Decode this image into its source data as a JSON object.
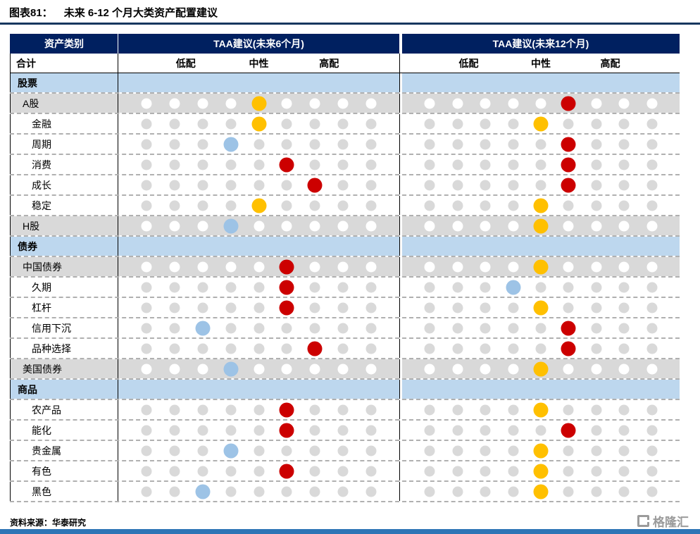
{
  "page": {
    "title_tag": "图表81：",
    "title_text": "未来 6-12 个月大类资产配置建议",
    "source": "资料来源：华泰研究",
    "logo_text": "格隆汇"
  },
  "colors": {
    "header_bg": "#002060",
    "header_text": "#FFFFFF",
    "section_bg": "#BDD7EE",
    "major_row_bg": "#D9D9D9",
    "inactive_dot_on_white_row": "#D9D9D9",
    "inactive_dot_on_gray_row": "#FFFFFF",
    "red": "#CC0000",
    "yellow": "#FFC000",
    "blue": "#9DC3E6",
    "footer_bar": "#2E75B6",
    "title_rule": "#17375E"
  },
  "chart_data": {
    "type": "table",
    "title": "未来 6-12 个月大类资产配置建议",
    "figure_number": "图表81：",
    "columns": [
      "资产类别",
      "TAA建议(未来6个月)",
      "TAA建议(未来12个月)"
    ],
    "subheader_label": "合计",
    "scale_labels": [
      "低配",
      "中性",
      "高配"
    ],
    "positions_per_row": 9,
    "rows": [
      {
        "label": "股票",
        "type": "section"
      },
      {
        "label": "A股",
        "type": "major",
        "m6": {
          "pos": 5,
          "color": "yellow"
        },
        "m12": {
          "pos": 6,
          "color": "red"
        }
      },
      {
        "label": "金融",
        "type": "sub",
        "m6": {
          "pos": 5,
          "color": "yellow"
        },
        "m12": {
          "pos": 5,
          "color": "yellow"
        }
      },
      {
        "label": "周期",
        "type": "sub",
        "m6": {
          "pos": 4,
          "color": "blue"
        },
        "m12": {
          "pos": 6,
          "color": "red"
        }
      },
      {
        "label": "消费",
        "type": "sub",
        "m6": {
          "pos": 6,
          "color": "red"
        },
        "m12": {
          "pos": 6,
          "color": "red"
        }
      },
      {
        "label": "成长",
        "type": "sub",
        "m6": {
          "pos": 7,
          "color": "red"
        },
        "m12": {
          "pos": 6,
          "color": "red"
        }
      },
      {
        "label": "稳定",
        "type": "sub",
        "m6": {
          "pos": 5,
          "color": "yellow"
        },
        "m12": {
          "pos": 5,
          "color": "yellow"
        }
      },
      {
        "label": "H股",
        "type": "major",
        "m6": {
          "pos": 4,
          "color": "blue"
        },
        "m12": {
          "pos": 5,
          "color": "yellow"
        }
      },
      {
        "label": "债券",
        "type": "section"
      },
      {
        "label": "中国债券",
        "type": "major",
        "m6": {
          "pos": 6,
          "color": "red"
        },
        "m12": {
          "pos": 5,
          "color": "yellow"
        }
      },
      {
        "label": "久期",
        "type": "sub",
        "m6": {
          "pos": 6,
          "color": "red"
        },
        "m12": {
          "pos": 4,
          "color": "blue"
        }
      },
      {
        "label": "杠杆",
        "type": "sub",
        "m6": {
          "pos": 6,
          "color": "red"
        },
        "m12": {
          "pos": 5,
          "color": "yellow"
        }
      },
      {
        "label": "信用下沉",
        "type": "sub",
        "m6": {
          "pos": 3,
          "color": "blue"
        },
        "m12": {
          "pos": 6,
          "color": "red"
        }
      },
      {
        "label": "品种选择",
        "type": "sub",
        "m6": {
          "pos": 7,
          "color": "red"
        },
        "m12": {
          "pos": 6,
          "color": "red"
        }
      },
      {
        "label": "美国债券",
        "type": "major",
        "m6": {
          "pos": 4,
          "color": "blue"
        },
        "m12": {
          "pos": 5,
          "color": "yellow"
        }
      },
      {
        "label": "商品",
        "type": "section"
      },
      {
        "label": "农产品",
        "type": "sub",
        "m6": {
          "pos": 6,
          "color": "red"
        },
        "m12": {
          "pos": 5,
          "color": "yellow"
        }
      },
      {
        "label": "能化",
        "type": "sub",
        "m6": {
          "pos": 6,
          "color": "red"
        },
        "m12": {
          "pos": 6,
          "color": "red"
        }
      },
      {
        "label": "贵金属",
        "type": "sub",
        "m6": {
          "pos": 4,
          "color": "blue"
        },
        "m12": {
          "pos": 5,
          "color": "yellow"
        }
      },
      {
        "label": "有色",
        "type": "sub",
        "m6": {
          "pos": 6,
          "color": "red"
        },
        "m12": {
          "pos": 5,
          "color": "yellow"
        }
      },
      {
        "label": "黑色",
        "type": "sub",
        "m6": {
          "pos": 3,
          "color": "blue"
        },
        "m12": {
          "pos": 5,
          "color": "yellow"
        }
      }
    ]
  }
}
